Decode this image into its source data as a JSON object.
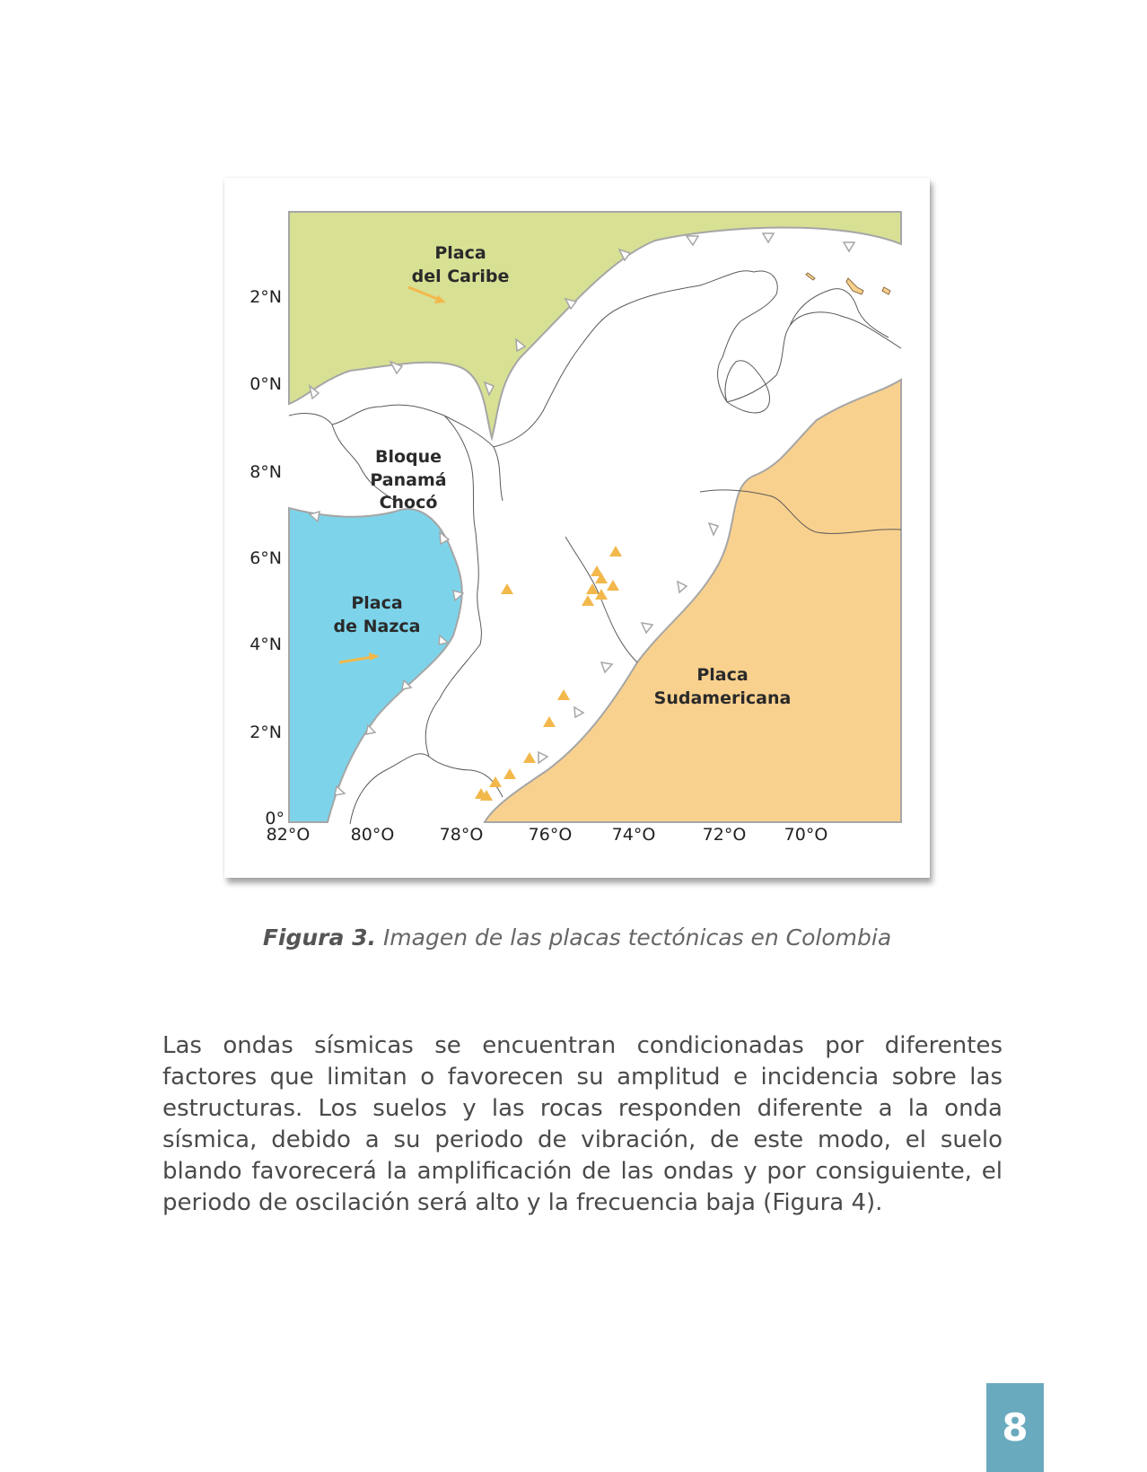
{
  "figure": {
    "plates": {
      "caribe": {
        "line1": "Placa",
        "line2": "del Caribe",
        "color": "#d8e094"
      },
      "panama": {
        "line1": "Bloque",
        "line2": "Panamá",
        "line3": "Chocó"
      },
      "nazca": {
        "line1": "Placa",
        "line2": "de Nazca",
        "color": "#7dd4ea"
      },
      "sudamericana": {
        "line1": "Placa",
        "line2": "Sudamericana",
        "color": "#f9d18e"
      }
    },
    "lat_labels": [
      "2°N",
      "0°N",
      "8°N",
      "6°N",
      "4°N",
      "2°N",
      "0°"
    ],
    "lon_labels": [
      "82°O",
      "80°O",
      "78°O",
      "76°O",
      "74°O",
      "72°O",
      "70°O"
    ],
    "colors": {
      "volcano": "#f2b84b",
      "arrow": "#f2b84b",
      "boundary": "#a6a6a6",
      "border": "#5a5a5a"
    },
    "icons": {
      "volcano": "volcano-triangle-icon",
      "movement": "plate-motion-arrow-icon",
      "subduction": "subduction-tooth-icon"
    }
  },
  "caption": {
    "number": "Figura 3.",
    "text": "Imagen de las placas tectónicas en Colombia"
  },
  "body": {
    "paragraph": "Las ondas sísmicas se encuentran condicionadas por diferentes factores que limitan o favorecen su amplitud e incidencia sobre las estructuras. Los suelos y las rocas responden diferente a la onda sísmica, debido a su periodo de vibración, de este modo, el suelo blando favorecerá la amplificación de las ondas y por consiguiente, el periodo de oscilación será alto y la frecuencia baja (Figura 4)."
  },
  "page_number": "8"
}
